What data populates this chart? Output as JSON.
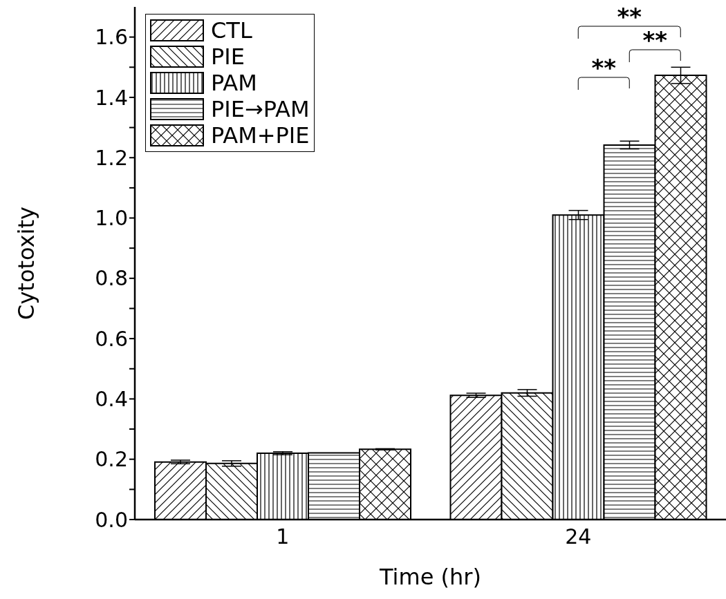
{
  "chart_data": {
    "type": "bar",
    "xlabel": "Time (hr)",
    "ylabel": "Cytotoxity",
    "categories": [
      "1",
      "24"
    ],
    "series": [
      {
        "name": "CTL",
        "color": "#000000",
        "values": [
          0.191,
          0.412
        ],
        "errors": [
          0.006,
          0.007
        ]
      },
      {
        "name": "PIE",
        "color": "#000000",
        "values": [
          0.186,
          0.42
        ],
        "errors": [
          0.009,
          0.011
        ]
      },
      {
        "name": "PAM",
        "color": "#000000",
        "values": [
          0.22,
          1.01
        ],
        "errors": [
          0.005,
          0.015
        ]
      },
      {
        "name": "PIE→PAM",
        "color": "#000000",
        "values": [
          0.221,
          1.242
        ],
        "errors": [
          null,
          0.013
        ]
      },
      {
        "name": "PAM+PIE",
        "color": "#000000",
        "values": [
          0.233,
          1.473
        ],
        "errors": [
          0.002,
          0.027
        ]
      }
    ],
    "ylim": [
      0,
      1.7
    ],
    "yticks": [
      {
        "value": 0,
        "label": "0.0"
      },
      {
        "value": 0.1,
        "label": null
      },
      {
        "value": 0.2,
        "label": "0.2"
      },
      {
        "value": 0.3,
        "label": null
      },
      {
        "value": 0.4,
        "label": "0.4"
      },
      {
        "value": 0.5,
        "label": null
      },
      {
        "value": 0.6,
        "label": "0.6"
      },
      {
        "value": 0.7,
        "label": null
      },
      {
        "value": 0.8,
        "label": "0.8"
      },
      {
        "value": 0.9,
        "label": null
      },
      {
        "value": 1,
        "label": "1.0"
      },
      {
        "value": 1.1,
        "label": null
      },
      {
        "value": 1.2,
        "label": "1.2"
      },
      {
        "value": 1.3,
        "label": null
      },
      {
        "value": 1.4,
        "label": "1.4"
      },
      {
        "value": 1.5,
        "label": null
      },
      {
        "value": 1.6,
        "label": "1.6"
      }
    ],
    "legend": "top left",
    "grid": false,
    "annotations": [
      "**",
      "**",
      "**"
    ]
  }
}
